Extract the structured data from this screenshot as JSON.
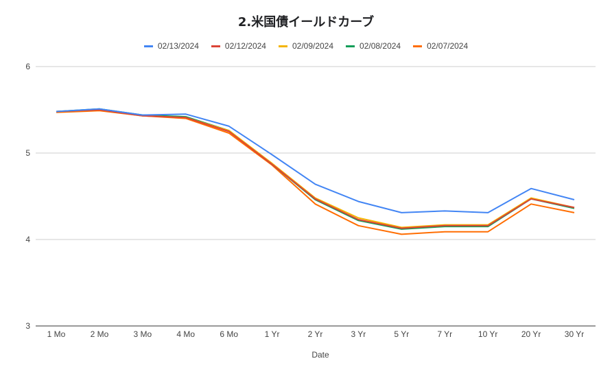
{
  "chart_data": {
    "type": "line",
    "title": "2.米国債イールドカーブ",
    "xlabel": "Date",
    "ylabel": "",
    "categories": [
      "1 Mo",
      "2 Mo",
      "3 Mo",
      "4 Mo",
      "6 Mo",
      "1 Yr",
      "2 Yr",
      "3 Yr",
      "5 Yr",
      "7 Yr",
      "10 Yr",
      "20 Yr",
      "30 Yr"
    ],
    "yticks": [
      "3",
      "4",
      "5",
      "6"
    ],
    "ylim": [
      3,
      6
    ],
    "grid": true,
    "legend_position": "top",
    "series": [
      {
        "name": "02/13/2024",
        "color": "#4285f4",
        "values": [
          5.48,
          5.51,
          5.44,
          5.45,
          5.31,
          4.98,
          4.64,
          4.44,
          4.31,
          4.33,
          4.31,
          4.59,
          4.46
        ]
      },
      {
        "name": "02/12/2024",
        "color": "#db4437",
        "values": [
          5.48,
          5.5,
          5.43,
          5.41,
          5.25,
          4.87,
          4.47,
          4.23,
          4.13,
          4.16,
          4.16,
          4.47,
          4.37
        ]
      },
      {
        "name": "02/09/2024",
        "color": "#f4b400",
        "values": [
          5.48,
          5.5,
          5.43,
          5.41,
          5.26,
          4.88,
          4.48,
          4.25,
          4.14,
          4.17,
          4.17,
          4.48,
          4.37
        ]
      },
      {
        "name": "02/08/2024",
        "color": "#0f9d58",
        "values": [
          5.48,
          5.51,
          5.44,
          5.42,
          5.26,
          4.87,
          4.46,
          4.22,
          4.12,
          4.15,
          4.15,
          4.47,
          4.36
        ]
      },
      {
        "name": "02/07/2024",
        "color": "#ff6d01",
        "values": [
          5.47,
          5.49,
          5.43,
          5.4,
          5.23,
          4.86,
          4.41,
          4.16,
          4.06,
          4.09,
          4.09,
          4.41,
          4.31
        ]
      }
    ]
  }
}
